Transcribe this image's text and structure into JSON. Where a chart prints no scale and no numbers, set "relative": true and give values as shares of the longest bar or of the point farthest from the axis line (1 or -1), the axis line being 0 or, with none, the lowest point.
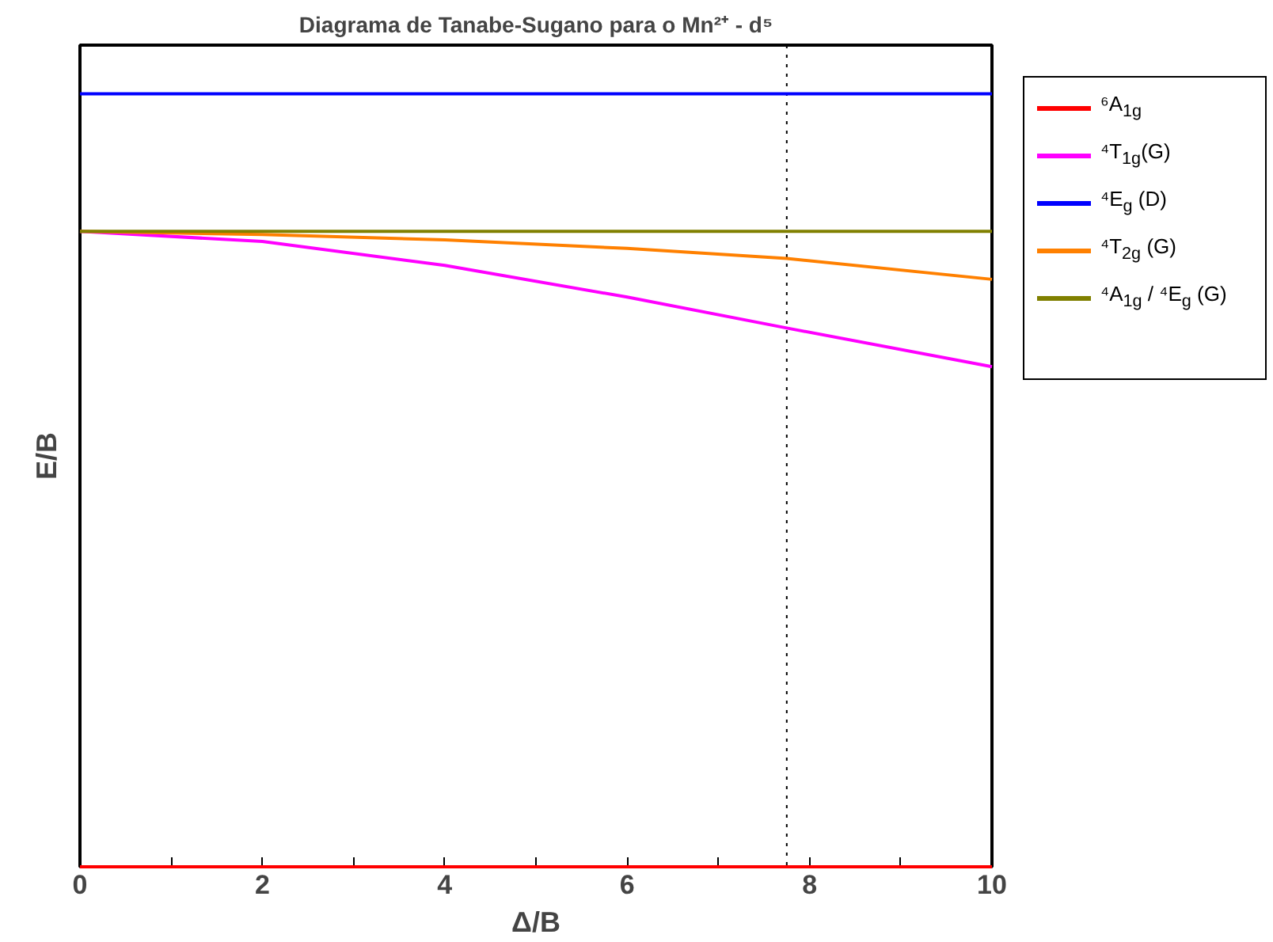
{
  "chart_data": {
    "type": "line",
    "title": "Diagrama de Tanabe-Sugano para o Mn²⁺ - d⁵",
    "xlabel": "Δ/B",
    "ylabel": "E/B",
    "relative": true,
    "xlim": [
      0,
      10
    ],
    "xticks": [
      0,
      {
        "value": 1,
        "label": null
      },
      2,
      {
        "value": 3,
        "label": null
      },
      4,
      {
        "value": 5,
        "label": null
      },
      6,
      {
        "value": 7,
        "label": null
      },
      8,
      {
        "value": 9,
        "label": null
      },
      10
    ],
    "tick_labels": "x",
    "grid": false,
    "legend": "right",
    "marker": "none",
    "line_style": "solid",
    "ref_lines": [
      {
        "axis": "x",
        "value": 7.75,
        "label": null,
        "color": "#000000",
        "line_style": "dotted"
      }
    ],
    "series": [
      {
        "name": "⁶A$_{1g}$",
        "color": "#ff0000",
        "x": [
          0,
          10
        ],
        "values": [
          0,
          0
        ]
      },
      {
        "name": "⁴T$_{1g}$(G)",
        "color": "#ff00ff",
        "x": [
          0,
          2,
          4,
          6,
          7.75,
          10
        ],
        "values": [
          0.822,
          0.809,
          0.778,
          0.737,
          0.697,
          0.647
        ]
      },
      {
        "name": "⁴E$_{g}$ (D)",
        "color": "#0000ff",
        "x": [
          0,
          10
        ],
        "values": [
          1,
          1
        ]
      },
      {
        "name": "⁴T$_{2g}$ (G)",
        "color": "#ff8000",
        "x": [
          0,
          2,
          4,
          6,
          7.75,
          10
        ],
        "values": [
          0.822,
          0.818,
          0.811,
          0.8,
          0.787,
          0.76
        ]
      },
      {
        "name": "⁴A$_{1g}$ / ⁴E$_{g}$ (G)",
        "color": "#808000",
        "x": [
          0,
          10
        ],
        "values": [
          0.822,
          0.822
        ]
      }
    ]
  }
}
